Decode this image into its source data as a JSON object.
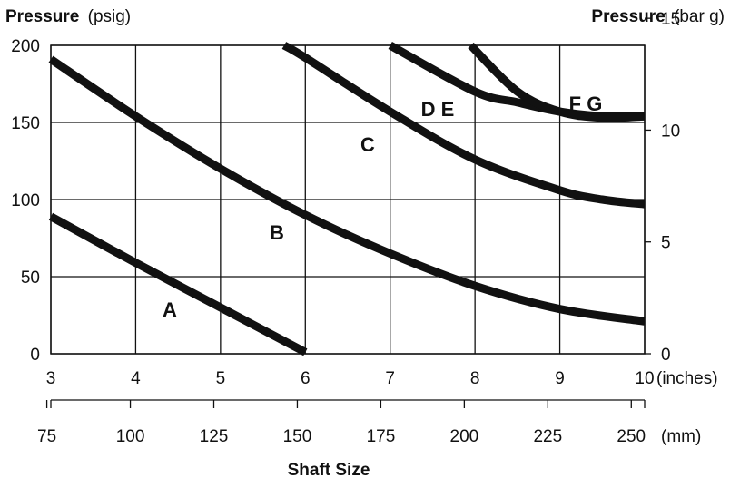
{
  "chart_data": {
    "type": "line",
    "title": "",
    "x_inches": {
      "label": "(inches)",
      "range": [
        3,
        10
      ],
      "ticks": [
        3,
        4,
        5,
        6,
        7,
        8,
        9,
        10
      ]
    },
    "x_mm": {
      "label": "(mm)",
      "ticks": [
        75,
        100,
        125,
        150,
        175,
        200,
        225,
        250
      ]
    },
    "xlabel": "Shaft Size",
    "y_left": {
      "label_bold": "Pressure",
      "label_unit": "(psig)",
      "range": [
        0,
        200
      ],
      "ticks": [
        0,
        50,
        100,
        150,
        200
      ]
    },
    "y_right": {
      "label_bold": "Pressure",
      "label_unit": "(bar g)",
      "ticks": [
        0,
        5,
        10,
        15
      ]
    },
    "grid": true,
    "series": [
      {
        "name": "A",
        "points": [
          [
            3,
            89
          ],
          [
            4,
            59
          ],
          [
            5,
            30
          ],
          [
            6,
            1
          ]
        ]
      },
      {
        "name": "B",
        "points": [
          [
            3,
            191
          ],
          [
            4,
            154
          ],
          [
            5,
            120
          ],
          [
            6,
            90
          ],
          [
            7,
            65
          ],
          [
            8,
            44
          ],
          [
            9,
            29
          ],
          [
            10,
            21
          ]
        ]
      },
      {
        "name": "C",
        "points": [
          [
            5.75,
            200
          ],
          [
            6,
            192
          ],
          [
            7,
            157
          ],
          [
            8,
            126
          ],
          [
            9,
            106
          ],
          [
            9.5,
            100
          ],
          [
            10,
            97
          ]
        ]
      },
      {
        "name": "D E",
        "points": [
          [
            7,
            200
          ],
          [
            8,
            170
          ],
          [
            8.5,
            163
          ],
          [
            9,
            157
          ],
          [
            9.5,
            154
          ],
          [
            10,
            154
          ]
        ]
      },
      {
        "name": "F G",
        "points": []
      }
    ],
    "curve_labels": [
      {
        "text": "A",
        "x": 4.4,
        "y": 52
      },
      {
        "text": "B",
        "x": 5.7,
        "y": 150
      },
      {
        "text": "C",
        "x": 6.8,
        "y": 270
      },
      {
        "text": "D E",
        "x": 7.6,
        "y": 348
      },
      {
        "text": "F G",
        "x": 9.3,
        "y": 380
      }
    ]
  }
}
